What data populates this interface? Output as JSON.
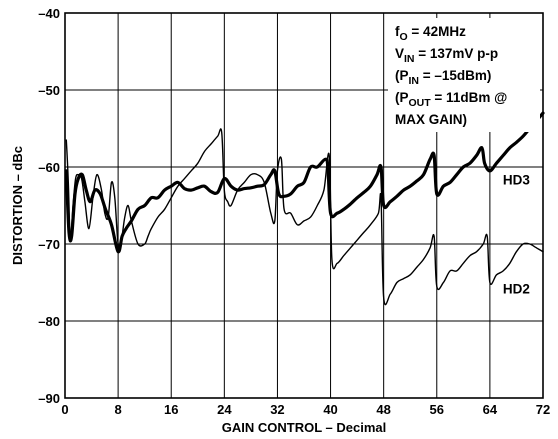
{
  "chart_data": {
    "type": "line",
    "xlabel": "GAIN CONTROL – Decimal",
    "ylabel": "DISTORTION – dBc",
    "xlim": [
      0,
      72
    ],
    "ylim": [
      -90,
      -40
    ],
    "x_ticks": [
      "0",
      "8",
      "16",
      "24",
      "32",
      "40",
      "48",
      "56",
      "64",
      "72"
    ],
    "y_ticks": [
      "–40",
      "–50",
      "–60",
      "–70",
      "–80",
      "–90"
    ],
    "grid": true,
    "annotation_lines": [
      {
        "main": "f",
        "sub": "O",
        "rest": " = 42MHz"
      },
      {
        "main": "V",
        "sub": "IN",
        "rest": " = 137mV p-p"
      },
      {
        "main": "(P",
        "sub": "IN",
        "rest": " = –15dBm)"
      },
      {
        "main": "(P",
        "sub": "OUT",
        "rest": " = 11dBm @"
      },
      {
        "main": "MAX GAIN)",
        "sub": "",
        "rest": ""
      }
    ],
    "series": [
      {
        "name": "HD3",
        "x": [
          0.2,
          0.6,
          1.0,
          1.5,
          2.0,
          2.6,
          3.2,
          3.8,
          4.5,
          5.3,
          6.1,
          7.0,
          8.0,
          8.6,
          9.2,
          10.0,
          11.0,
          12.0,
          13.0,
          14.0,
          15.0,
          16.0,
          17.0,
          18.0,
          19.0,
          20.0,
          21.0,
          22.0,
          23.0,
          24.0,
          25.0,
          26.0,
          27.0,
          28.0,
          29.0,
          30.0,
          31.0,
          31.6,
          32.2,
          33.0,
          34.0,
          35.0,
          36.0,
          37.0,
          38.0,
          39.2,
          39.6,
          40.0,
          41.0,
          42.0,
          43.0,
          44.0,
          45.0,
          46.0,
          47.0,
          47.6,
          48.0,
          49.0,
          50.0,
          51.0,
          52.0,
          53.0,
          54.0,
          55.0,
          55.6,
          56.0,
          57.0,
          58.0,
          59.0,
          60.0,
          61.0,
          62.0,
          62.8,
          63.2,
          64.0,
          65.0,
          66.0,
          67.0,
          68.0,
          69.0,
          70.0,
          71.0,
          72.0
        ],
        "y": [
          -60.5,
          -68.5,
          -69.0,
          -63.5,
          -61.5,
          -61.0,
          -63.0,
          -64.5,
          -63.0,
          -63.5,
          -65.5,
          -67.5,
          -71.0,
          -69.0,
          -68.0,
          -67.0,
          -65.5,
          -65.0,
          -64.0,
          -64.0,
          -63.0,
          -62.5,
          -62.0,
          -62.8,
          -63.0,
          -62.7,
          -62.5,
          -63.2,
          -63.3,
          -61.5,
          -62.5,
          -63.0,
          -62.8,
          -62.7,
          -62.5,
          -62.3,
          -61.0,
          -60.5,
          -63.5,
          -63.8,
          -63.5,
          -62.5,
          -62.0,
          -60.0,
          -60.0,
          -59.0,
          -60.0,
          -66.0,
          -66.0,
          -65.5,
          -64.8,
          -64.0,
          -63.3,
          -62.5,
          -61.0,
          -60.0,
          -65.0,
          -64.5,
          -63.8,
          -63.0,
          -62.5,
          -61.8,
          -61.0,
          -59.0,
          -58.5,
          -63.5,
          -62.5,
          -62.0,
          -61.0,
          -60.0,
          -59.5,
          -58.5,
          -57.5,
          -59.5,
          -60.5,
          -59.5,
          -58.5,
          -57.5,
          -56.8,
          -56.0,
          -55.0,
          -54.0,
          -53.0
        ]
      },
      {
        "name": "HD2",
        "x": [
          0.2,
          0.5,
          0.8,
          1.2,
          1.6,
          2.0,
          2.5,
          3.0,
          3.6,
          4.2,
          4.8,
          5.5,
          6.0,
          6.5,
          7.0,
          7.5,
          8.0,
          8.5,
          9.0,
          9.5,
          10.0,
          11.0,
          12.0,
          12.5,
          13.0,
          14.0,
          15.0,
          16.0,
          17.0,
          18.0,
          19.0,
          20.0,
          21.0,
          22.0,
          23.0,
          23.6,
          24.0,
          24.5,
          25.0,
          26.0,
          27.0,
          28.0,
          29.0,
          30.0,
          31.0,
          31.6,
          32.0,
          32.6,
          33.0,
          34.0,
          35.0,
          36.0,
          37.0,
          38.0,
          39.0,
          39.8,
          40.2,
          41.0,
          42.0,
          43.0,
          44.0,
          45.0,
          46.0,
          47.2,
          47.6,
          48.0,
          49.0,
          50.0,
          51.0,
          52.0,
          53.0,
          54.0,
          55.0,
          55.6,
          56.0,
          57.0,
          58.0,
          59.0,
          60.0,
          61.0,
          62.0,
          63.0,
          63.6,
          64.0,
          65.0,
          66.0,
          67.0,
          68.0,
          69.0,
          70.0,
          71.0,
          72.0
        ],
        "y": [
          -56.5,
          -62.0,
          -69.5,
          -65.0,
          -61.5,
          -61.0,
          -61.5,
          -64.5,
          -68.0,
          -64.0,
          -61.0,
          -63.0,
          -66.0,
          -66.5,
          -62.0,
          -64.0,
          -70.0,
          -69.5,
          -66.5,
          -65.0,
          -67.0,
          -70.0,
          -70.0,
          -69.0,
          -68.0,
          -66.5,
          -65.5,
          -64.0,
          -62.5,
          -61.5,
          -60.5,
          -59.5,
          -58.0,
          -57.0,
          -56.0,
          -55.5,
          -63.0,
          -64.5,
          -65.0,
          -63.0,
          -62.0,
          -61.0,
          -61.0,
          -62.0,
          -66.0,
          -67.0,
          -60.5,
          -59.0,
          -65.5,
          -66.0,
          -67.5,
          -67.0,
          -66.5,
          -65.0,
          -63.0,
          -58.5,
          -72.0,
          -72.5,
          -71.5,
          -70.5,
          -69.5,
          -68.5,
          -67.5,
          -66.0,
          -64.0,
          -77.0,
          -76.5,
          -75.0,
          -74.5,
          -74.0,
          -73.0,
          -72.0,
          -70.5,
          -69.0,
          -75.5,
          -75.0,
          -73.5,
          -73.5,
          -72.5,
          -71.5,
          -71.0,
          -70.0,
          -69.0,
          -75.0,
          -74.0,
          -73.5,
          -72.5,
          -71.0,
          -70.0,
          -70.0,
          -70.5,
          -71.0
        ]
      }
    ]
  }
}
